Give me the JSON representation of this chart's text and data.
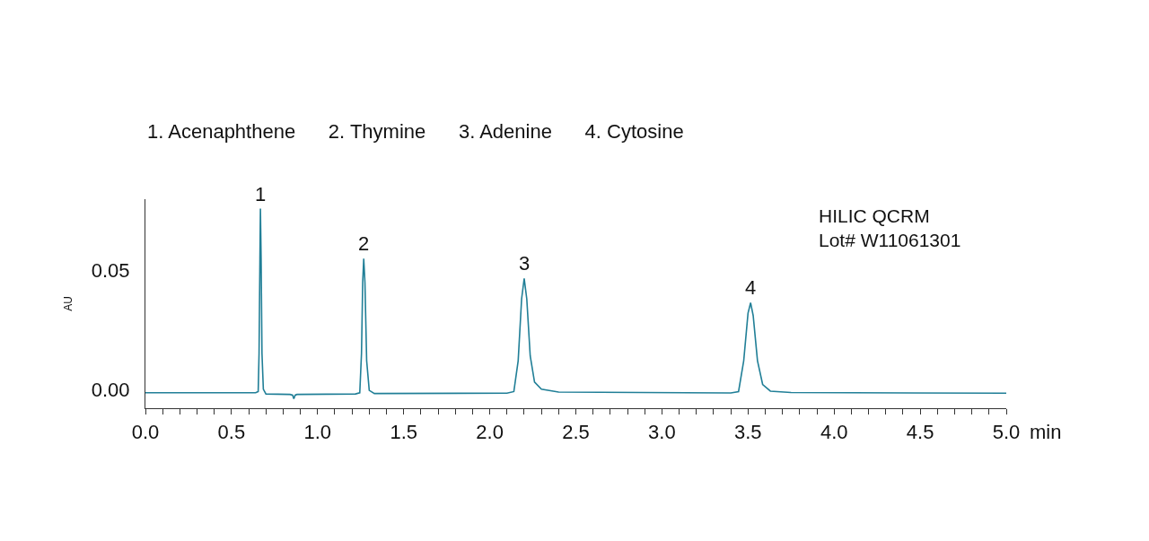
{
  "chart_data": {
    "type": "line",
    "xlabel": "min",
    "ylabel": "AU",
    "xlim": [
      0,
      5
    ],
    "ylim": [
      -0.008,
      0.08
    ],
    "xticks": [
      {
        "value": 0,
        "label": "0.0"
      },
      {
        "value": 0.1,
        "label": null
      },
      {
        "value": 0.2,
        "label": null
      },
      {
        "value": 0.3,
        "label": null
      },
      {
        "value": 0.4,
        "label": null
      },
      {
        "value": 0.5,
        "label": "0.5"
      },
      {
        "value": 0.6,
        "label": null
      },
      {
        "value": 0.7,
        "label": null
      },
      {
        "value": 0.8,
        "label": null
      },
      {
        "value": 0.9,
        "label": null
      },
      {
        "value": 1,
        "label": "1.0"
      },
      {
        "value": 1.1,
        "label": null
      },
      {
        "value": 1.2,
        "label": null
      },
      {
        "value": 1.3,
        "label": null
      },
      {
        "value": 1.4,
        "label": null
      },
      {
        "value": 1.5,
        "label": "1.5"
      },
      {
        "value": 1.6,
        "label": null
      },
      {
        "value": 1.7,
        "label": null
      },
      {
        "value": 1.8,
        "label": null
      },
      {
        "value": 1.9,
        "label": null
      },
      {
        "value": 2,
        "label": "2.0"
      },
      {
        "value": 2.1,
        "label": null
      },
      {
        "value": 2.2,
        "label": null
      },
      {
        "value": 2.3,
        "label": null
      },
      {
        "value": 2.4,
        "label": null
      },
      {
        "value": 2.5,
        "label": "2.5"
      },
      {
        "value": 2.6,
        "label": null
      },
      {
        "value": 2.7,
        "label": null
      },
      {
        "value": 2.8,
        "label": null
      },
      {
        "value": 2.9,
        "label": null
      },
      {
        "value": 3,
        "label": "3.0"
      },
      {
        "value": 3.1,
        "label": null
      },
      {
        "value": 3.2,
        "label": null
      },
      {
        "value": 3.3,
        "label": null
      },
      {
        "value": 3.4,
        "label": null
      },
      {
        "value": 3.5,
        "label": "3.5"
      },
      {
        "value": 3.6,
        "label": null
      },
      {
        "value": 3.7,
        "label": null
      },
      {
        "value": 3.8,
        "label": null
      },
      {
        "value": 3.9,
        "label": null
      },
      {
        "value": 4,
        "label": "4.0"
      },
      {
        "value": 4.1,
        "label": null
      },
      {
        "value": 4.2,
        "label": null
      },
      {
        "value": 4.3,
        "label": null
      },
      {
        "value": 4.4,
        "label": null
      },
      {
        "value": 4.5,
        "label": "4.5"
      },
      {
        "value": 4.6,
        "label": null
      },
      {
        "value": 4.7,
        "label": null
      },
      {
        "value": 4.8,
        "label": null
      },
      {
        "value": 4.9,
        "label": null
      },
      {
        "value": 5,
        "label": "5.0"
      }
    ],
    "yticks": [
      {
        "value": 0,
        "label": "0.00"
      },
      {
        "value": 0.05,
        "label": "0.05"
      }
    ],
    "marker": "none",
    "line_style": "solid",
    "series": [
      {
        "color": "#217f97",
        "x": [
          0,
          0.64,
          0.655,
          0.66,
          0.665,
          0.668,
          0.672,
          0.677,
          0.685,
          0.7,
          0.84,
          0.855,
          0.862,
          0.87,
          0.88,
          1.22,
          1.245,
          1.255,
          1.262,
          1.268,
          1.275,
          1.285,
          1.3,
          1.33,
          2.1,
          2.14,
          2.165,
          2.185,
          2.2,
          2.215,
          2.235,
          2.26,
          2.3,
          2.4,
          3.4,
          3.445,
          3.475,
          3.5,
          3.515,
          3.53,
          3.555,
          3.585,
          3.63,
          3.75,
          5
        ],
        "values": [
          -0.0015,
          -0.0015,
          -0.001,
          0.015,
          0.055,
          0.076,
          0.055,
          0.015,
          0,
          -0.002,
          -0.0022,
          -0.0025,
          -0.004,
          -0.0025,
          -0.0022,
          -0.002,
          -0.0015,
          0.015,
          0.045,
          0.055,
          0.045,
          0.012,
          -0.0005,
          -0.0018,
          -0.0017,
          -0.001,
          0.012,
          0.038,
          0.0466,
          0.038,
          0.014,
          0.003,
          0,
          -0.0012,
          -0.0016,
          -0.001,
          0.012,
          0.032,
          0.0364,
          0.031,
          0.012,
          0.002,
          -0.0008,
          -0.0014,
          -0.0017
        ]
      }
    ],
    "annotations": [
      "1. Acenaphthene      2. Thymine      3. Adenine      4. Cytosine",
      "HILIC QCRM\nLot# W11061301",
      {
        "text": "1",
        "x": 0.668,
        "y": 0.076
      },
      {
        "text": "2",
        "x": 1.268,
        "y": 0.055
      },
      {
        "text": "3",
        "x": 2.2,
        "y": 0.0466
      },
      {
        "text": "4",
        "x": 3.515,
        "y": 0.0364
      }
    ]
  }
}
